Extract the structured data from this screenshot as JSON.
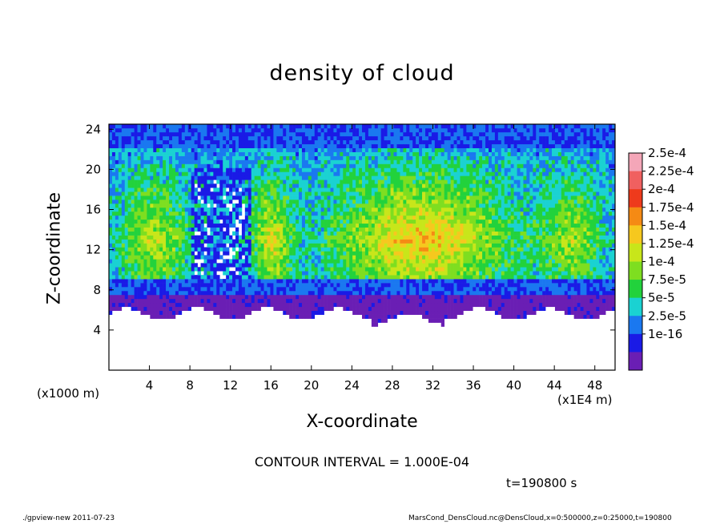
{
  "chart_data": {
    "type": "heatmap",
    "title": "density of cloud",
    "xlabel": "X-coordinate",
    "ylabel": "Z-coordinate",
    "x_unit": "(x1E4 m)",
    "y_unit": "(x1000 m)",
    "xlim": [
      0,
      50
    ],
    "ylim": [
      0,
      24.5
    ],
    "x_ticks": [
      "4",
      "8",
      "12",
      "16",
      "20",
      "24",
      "28",
      "32",
      "36",
      "40",
      "44",
      "48"
    ],
    "y_ticks": [
      "4",
      "8",
      "12",
      "16",
      "20",
      "24"
    ],
    "colorbar": {
      "labels": [
        "2.5e-4",
        "2.25e-4",
        "2e-4",
        "1.75e-4",
        "1.5e-4",
        "1.25e-4",
        "1e-4",
        "7.5e-5",
        "5e-5",
        "2.5e-5",
        "1e-16"
      ],
      "colors": [
        "#f4a6b8",
        "#f06060",
        "#ee3a1c",
        "#f58a14",
        "#f6c81e",
        "#c8e61a",
        "#7ede20",
        "#22d23c",
        "#1ad2d2",
        "#1a78f0",
        "#1a1ae6",
        "#6a1eb4"
      ]
    },
    "contour_interval": "CONTOUR INTERVAL = 1.000E-04",
    "time": "t=190800 s"
  },
  "footer": {
    "left": "./gpview-new  2011-07-23",
    "right": "MarsCond_DensCloud.nc@DensCloud,x=0:500000,z=0:25000,t=190800"
  }
}
